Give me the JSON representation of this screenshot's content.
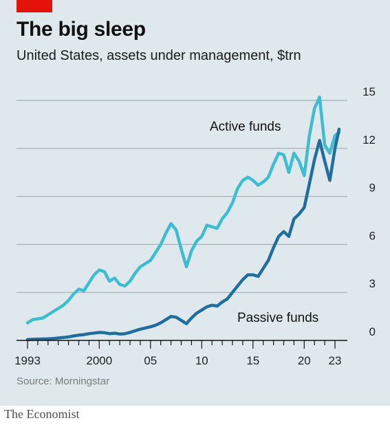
{
  "header": {
    "title": "The big sleep",
    "subtitle": "United States, assets under management, $trn"
  },
  "footer": {
    "source": "Source: Morningstar",
    "brand": "The Economist"
  },
  "colors": {
    "background": "#dfe8ec",
    "accent_red": "#e3120b",
    "active": "#3ebcd2",
    "passive": "#1f6e9f",
    "grid": "#8fa6b3",
    "axis": "#111111"
  },
  "chart_data": {
    "type": "line",
    "title": "The big sleep",
    "subtitle": "United States, assets under management, $trn",
    "xlim": [
      1993,
      2023.5
    ],
    "ylim": [
      0,
      15
    ],
    "grid": true,
    "y_axis_position": "right",
    "x_ticks": [
      {
        "value": 1993,
        "label": "1993"
      },
      {
        "value": 2000,
        "label": "2000"
      },
      {
        "value": 2005,
        "label": "05"
      },
      {
        "value": 2010,
        "label": "10"
      },
      {
        "value": 2015,
        "label": "15"
      },
      {
        "value": 2020,
        "label": "20"
      },
      {
        "value": 2023,
        "label": "23"
      }
    ],
    "y_ticks": [
      {
        "value": 0,
        "label": "0"
      },
      {
        "value": 3,
        "label": "3"
      },
      {
        "value": 6,
        "label": "6"
      },
      {
        "value": 9,
        "label": "9"
      },
      {
        "value": 12,
        "label": "12"
      },
      {
        "value": 15,
        "label": "15"
      }
    ],
    "series": [
      {
        "name": "Active funds",
        "color": "#3ebcd2",
        "x": [
          1993.0,
          1993.5,
          1994.0,
          1994.5,
          1995.0,
          1995.5,
          1996.0,
          1996.5,
          1997.0,
          1997.5,
          1998.0,
          1998.5,
          1999.0,
          1999.5,
          2000.0,
          2000.5,
          2001.0,
          2001.5,
          2002.0,
          2002.5,
          2003.0,
          2003.5,
          2004.0,
          2004.5,
          2005.0,
          2005.5,
          2006.0,
          2006.5,
          2007.0,
          2007.5,
          2008.0,
          2008.5,
          2009.0,
          2009.5,
          2010.0,
          2010.5,
          2011.0,
          2011.5,
          2012.0,
          2012.5,
          2013.0,
          2013.5,
          2014.0,
          2014.5,
          2015.0,
          2015.5,
          2016.0,
          2016.5,
          2017.0,
          2017.5,
          2018.0,
          2018.5,
          2019.0,
          2019.5,
          2020.0,
          2020.5,
          2021.0,
          2021.5,
          2022.0,
          2022.5,
          2023.0,
          2023.4
        ],
        "values": [
          1.1,
          1.3,
          1.35,
          1.4,
          1.6,
          1.8,
          2.0,
          2.2,
          2.5,
          2.9,
          3.2,
          3.1,
          3.6,
          4.1,
          4.4,
          4.3,
          3.7,
          3.9,
          3.5,
          3.4,
          3.7,
          4.2,
          4.6,
          4.8,
          5.0,
          5.5,
          6.0,
          6.7,
          7.3,
          6.9,
          5.7,
          4.6,
          5.6,
          6.2,
          6.5,
          7.2,
          7.1,
          7.0,
          7.6,
          8.0,
          8.6,
          9.5,
          10.0,
          10.2,
          10.0,
          9.7,
          9.9,
          10.2,
          11.0,
          11.7,
          11.6,
          10.5,
          11.7,
          11.2,
          10.3,
          12.8,
          14.5,
          15.2,
          12.2,
          11.7,
          12.8,
          13.0
        ]
      },
      {
        "name": "Passive funds",
        "color": "#1f6e9f",
        "x": [
          1993.0,
          1993.5,
          1994.0,
          1994.5,
          1995.0,
          1995.5,
          1996.0,
          1996.5,
          1997.0,
          1997.5,
          1998.0,
          1998.5,
          1999.0,
          1999.5,
          2000.0,
          2000.5,
          2001.0,
          2001.5,
          2002.0,
          2002.5,
          2003.0,
          2003.5,
          2004.0,
          2004.5,
          2005.0,
          2005.5,
          2006.0,
          2006.5,
          2007.0,
          2007.5,
          2008.0,
          2008.5,
          2009.0,
          2009.5,
          2010.0,
          2010.5,
          2011.0,
          2011.5,
          2012.0,
          2012.5,
          2013.0,
          2013.5,
          2014.0,
          2014.5,
          2015.0,
          2015.5,
          2016.0,
          2016.5,
          2017.0,
          2017.5,
          2018.0,
          2018.5,
          2019.0,
          2019.5,
          2020.0,
          2020.5,
          2021.0,
          2021.5,
          2022.0,
          2022.5,
          2023.0,
          2023.4
        ],
        "values": [
          0.05,
          0.07,
          0.08,
          0.09,
          0.1,
          0.12,
          0.15,
          0.18,
          0.22,
          0.28,
          0.33,
          0.36,
          0.42,
          0.46,
          0.5,
          0.48,
          0.42,
          0.45,
          0.4,
          0.42,
          0.5,
          0.6,
          0.7,
          0.78,
          0.85,
          0.95,
          1.1,
          1.3,
          1.5,
          1.45,
          1.25,
          1.05,
          1.4,
          1.7,
          1.9,
          2.1,
          2.2,
          2.15,
          2.4,
          2.6,
          3.0,
          3.4,
          3.8,
          4.1,
          4.1,
          4.0,
          4.5,
          5.0,
          5.8,
          6.5,
          6.8,
          6.5,
          7.6,
          7.9,
          8.3,
          9.8,
          11.3,
          12.5,
          11.2,
          10.0,
          12.0,
          13.2
        ]
      }
    ],
    "annotations": [
      {
        "text": "Active funds",
        "series": "Active funds"
      },
      {
        "text": "Passive funds",
        "series": "Passive funds"
      }
    ]
  }
}
